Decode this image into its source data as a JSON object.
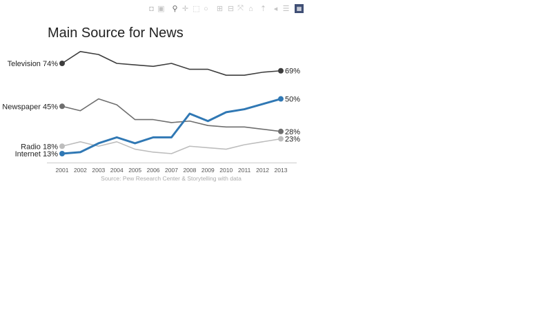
{
  "toolbar": {
    "buttons": [
      {
        "icon": "camera-icon",
        "glyph": "◘"
      },
      {
        "icon": "save-icon",
        "glyph": "▣"
      },
      {
        "icon": "zoom-icon",
        "glyph": "⚲",
        "active": true
      },
      {
        "icon": "pan-icon",
        "glyph": "✛"
      },
      {
        "icon": "box-select-icon",
        "glyph": "⬚"
      },
      {
        "icon": "lasso-select-icon",
        "glyph": "○"
      },
      {
        "icon": "zoom-in-icon",
        "glyph": "⊞"
      },
      {
        "icon": "zoom-out-icon",
        "glyph": "⊟"
      },
      {
        "icon": "autoscale-icon",
        "glyph": "⤧"
      },
      {
        "icon": "home-icon",
        "glyph": "⌂"
      },
      {
        "icon": "spike-lines-icon",
        "glyph": "⇡"
      },
      {
        "icon": "hover-closest-icon",
        "glyph": "◂"
      },
      {
        "icon": "hover-compare-icon",
        "glyph": "☰"
      },
      {
        "icon": "plotly-logo-icon",
        "glyph": "▦"
      }
    ]
  },
  "chart_data": {
    "type": "line",
    "title": "Main Source for News",
    "x": [
      2001,
      2002,
      2003,
      2004,
      2005,
      2006,
      2007,
      2008,
      2009,
      2010,
      2011,
      2012,
      2013
    ],
    "tick_labels": [
      "2001",
      "2002",
      "2003",
      "2004",
      "2005",
      "2006",
      "2007",
      "2008",
      "2009",
      "2010",
      "2011",
      "2012",
      "2013"
    ],
    "ylim": [
      13,
      74
    ],
    "grid": false,
    "legend": "none (inline labels)",
    "source": "Source: Pew Research Center & Storytelling with data",
    "series": [
      {
        "name": "Television",
        "color": "#3d3d3d",
        "width": 1.6,
        "start_label": "Television 74%",
        "end_label": "69%",
        "values": [
          74,
          82,
          80,
          74,
          73,
          72,
          74,
          70,
          70,
          66,
          66,
          68,
          69
        ]
      },
      {
        "name": "Newspaper",
        "color": "#6e6e6e",
        "width": 1.6,
        "start_label": "Newspaper 45%",
        "end_label": "28%",
        "values": [
          45,
          42,
          50,
          46,
          36,
          36,
          34,
          35,
          32,
          31,
          31,
          29.5,
          28
        ]
      },
      {
        "name": "Radio",
        "color": "#bdbdbd",
        "width": 1.6,
        "start_label": "Radio 18%",
        "end_label": "23%",
        "values": [
          18,
          21,
          18,
          21,
          16,
          14,
          13,
          18,
          17,
          16,
          19,
          21,
          23
        ]
      },
      {
        "name": "Internet",
        "color": "#3078b4",
        "width": 3,
        "start_label": "Internet 13%",
        "end_label": "50%",
        "values": [
          13,
          14,
          20,
          24,
          20,
          24,
          24,
          40,
          35,
          41,
          43,
          46.5,
          50
        ]
      }
    ]
  }
}
